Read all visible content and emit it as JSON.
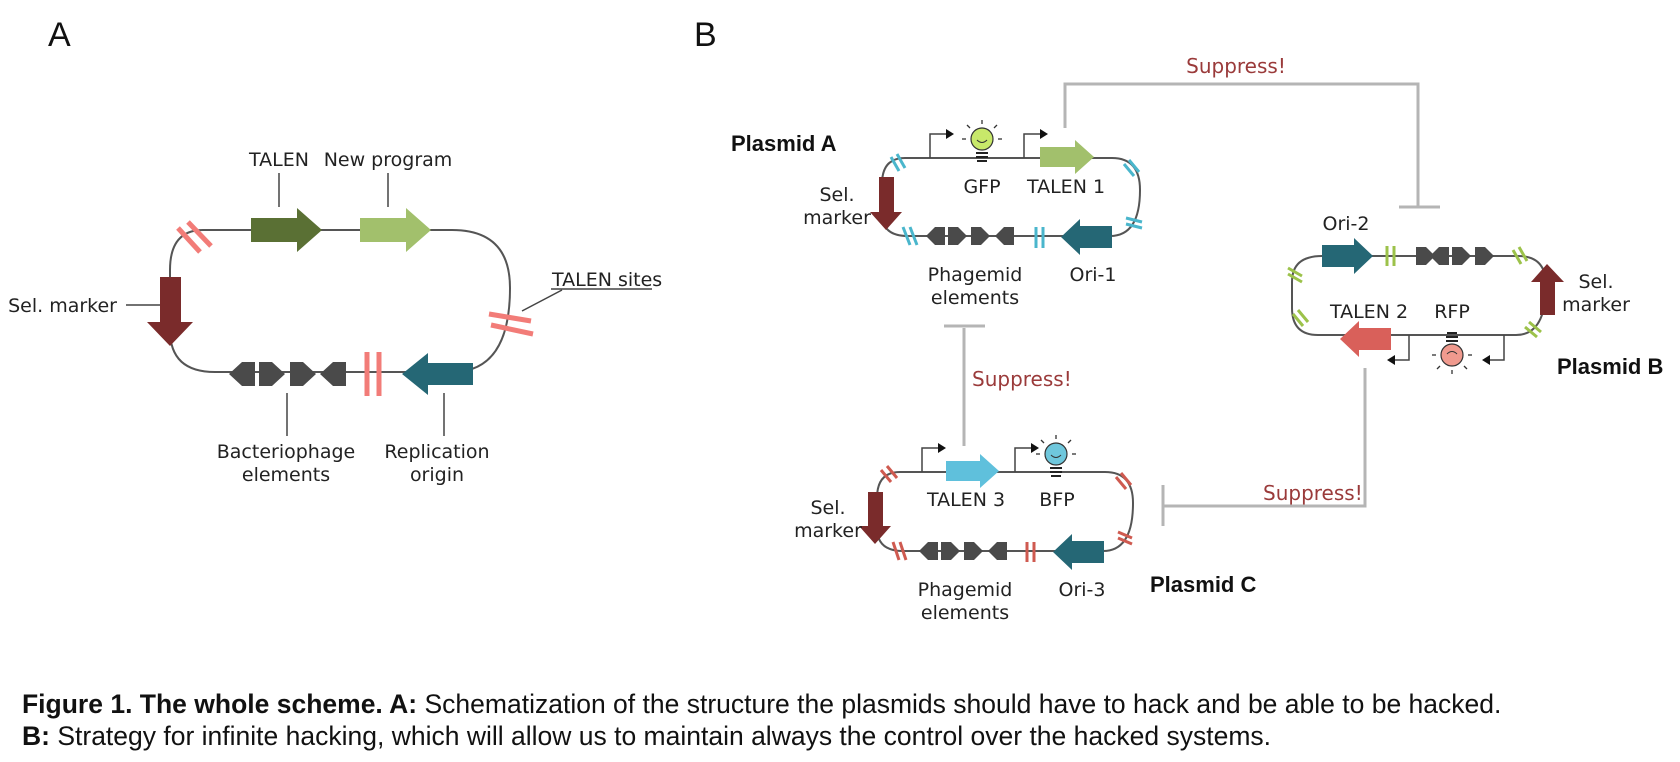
{
  "panels": {
    "a": "A",
    "b": "B"
  },
  "panel_a": {
    "talen": "TALEN",
    "new_program": "New program",
    "sel_marker": "Sel. marker",
    "talen_sites": "TALEN sites",
    "bacteriophage_1": "Bacteriophage",
    "bacteriophage_2": "elements",
    "replication_1": "Replication",
    "replication_2": "origin"
  },
  "plasmid_a": {
    "title": "Plasmid A",
    "sel_1": "Sel.",
    "sel_2": "marker",
    "reporter": "GFP",
    "talen": "TALEN 1",
    "phagemid_1": "Phagemid",
    "phagemid_2": "elements",
    "ori": "Ori-1"
  },
  "plasmid_b": {
    "title": "Plasmid B",
    "ori": "Ori-2",
    "sel_1": "Sel.",
    "sel_2": "marker",
    "talen": "TALEN 2",
    "reporter": "RFP"
  },
  "plasmid_c": {
    "title": "Plasmid C",
    "sel_1": "Sel.",
    "sel_2": "marker",
    "talen": "TALEN 3",
    "reporter": "BFP",
    "phagemid_1": "Phagemid",
    "phagemid_2": "elements",
    "ori": "Ori-3"
  },
  "suppress": {
    "ab": "Suppress!",
    "ac": "Suppress!",
    "bc": "Suppress!"
  },
  "caption": {
    "line1_bold": "Figure 1. The whole scheme. A:",
    "line1_text": " Schematization of the structure the plasmids should have to hack and be able to be hacked.",
    "line2_bold": "B:",
    "line2_text": " Strategy for infinite hacking, which will allow us to maintain always the control over the hacked systems."
  },
  "colors": {
    "talen_dark": "#5a7034",
    "new_program": "#a2c06c",
    "sel_marker": "#7a2b2b",
    "origin": "#256775",
    "phage": "#4a4a4a",
    "site_a": "#f27c78",
    "site_plasmid_a": "#4ab6cc",
    "site_plasmid_b": "#9cc24a",
    "site_plasmid_c": "#cf5a50",
    "talen1": "#a2c06c",
    "talen2": "#d9605a",
    "talen3": "#5fc0dc",
    "gfp": "#c8e86a",
    "rfp": "#f09a8e",
    "bfp": "#6fc7dc",
    "suppress_text": "#9a3a3a",
    "suppress_line": "#b5b5b5"
  }
}
